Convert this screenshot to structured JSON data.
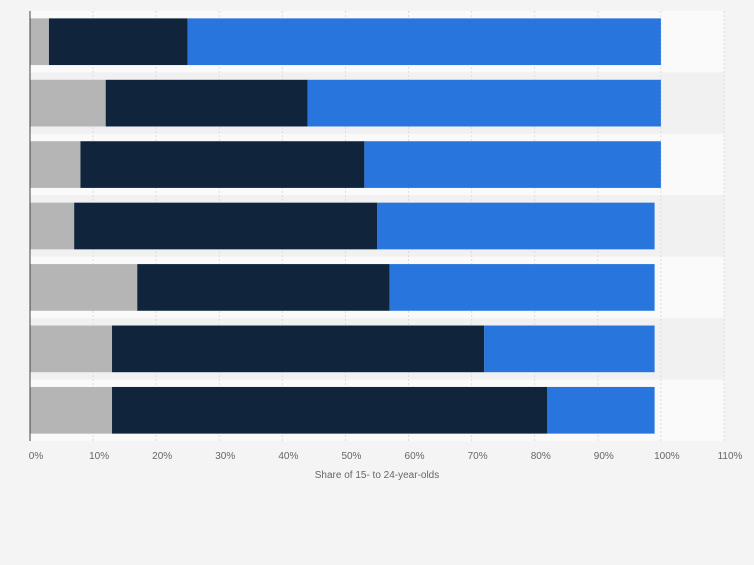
{
  "colors": {
    "background": "#f4f4f4",
    "band_light": "#fafafa",
    "band_dark": "#f1f1f1",
    "grid": "#dddddd",
    "axis": "#444444",
    "series": [
      "#b5b5b5",
      "#10253c",
      "#2876dd"
    ]
  },
  "chart_data": {
    "type": "bar",
    "orientation": "horizontal",
    "stacked": true,
    "title": "",
    "xlabel": "Share of 15- to 24-year-olds",
    "ylabel": "",
    "xlim": [
      0,
      110
    ],
    "xtick_labels": [
      "0%",
      "10%",
      "20%",
      "30%",
      "40%",
      "50%",
      "60%",
      "70%",
      "80%",
      "90%",
      "100%",
      "110%"
    ],
    "grid": true,
    "legend": "none",
    "categories": [
      "",
      "",
      "",
      "",
      "",
      "",
      ""
    ],
    "series": [
      {
        "name": "",
        "values": [
          3,
          12,
          8,
          7,
          17,
          13,
          13
        ]
      },
      {
        "name": "",
        "values": [
          22,
          32,
          45,
          48,
          40,
          59,
          69
        ]
      },
      {
        "name": "",
        "values": [
          75,
          56,
          47,
          44,
          42,
          27,
          17
        ]
      }
    ]
  }
}
